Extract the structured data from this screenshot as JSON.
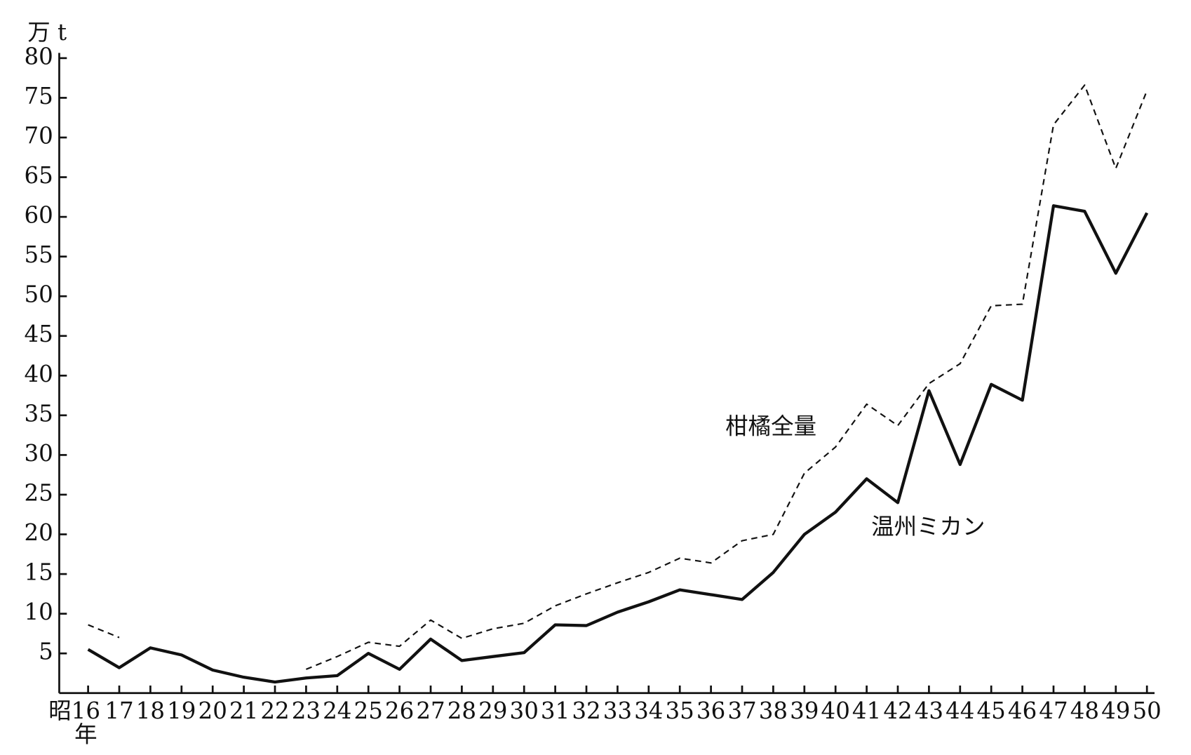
{
  "chart_data": {
    "type": "line",
    "y_label": "万 t",
    "x_label": "年",
    "categories": [
      "昭16",
      "17",
      "18",
      "19",
      "20",
      "21",
      "22",
      "23",
      "24",
      "25",
      "26",
      "27",
      "28",
      "29",
      "30",
      "31",
      "32",
      "33",
      "34",
      "35",
      "36",
      "37",
      "38",
      "39",
      "40",
      "41",
      "42",
      "43",
      "44",
      "45",
      "46",
      "47",
      "48",
      "49",
      "50"
    ],
    "series": [
      {
        "name": "柑橘全量",
        "color": "#111111",
        "dashed": true,
        "values": [
          8.6,
          7.0,
          null,
          null,
          null,
          null,
          null,
          3.0,
          4.6,
          6.4,
          5.9,
          9.2,
          6.9,
          8.1,
          8.8,
          11.0,
          12.5,
          13.9,
          15.2,
          17.0,
          16.4,
          19.2,
          20.0,
          27.7,
          31.0,
          36.4,
          33.7,
          39.0,
          41.5,
          48.8,
          49.0,
          71.6,
          76.6,
          66.1,
          75.9
        ]
      },
      {
        "name": "温州ミカン",
        "color": "#111111",
        "dashed": false,
        "values": [
          5.5,
          3.2,
          5.7,
          4.8,
          2.9,
          2.0,
          1.4,
          1.9,
          2.2,
          5.0,
          3.0,
          6.8,
          4.1,
          4.6,
          5.1,
          8.6,
          8.5,
          10.2,
          11.5,
          13.0,
          12.4,
          11.8,
          15.2,
          20.0,
          22.8,
          27.0,
          24.0,
          38.1,
          28.8,
          38.9,
          36.9,
          61.4,
          60.7,
          52.9,
          60.5
        ]
      }
    ],
    "ylim": [
      0,
      80
    ],
    "yticks": [
      5,
      10,
      15,
      20,
      25,
      30,
      35,
      40,
      45,
      50,
      55,
      60,
      65,
      70,
      75,
      80
    ],
    "grid": false
  }
}
